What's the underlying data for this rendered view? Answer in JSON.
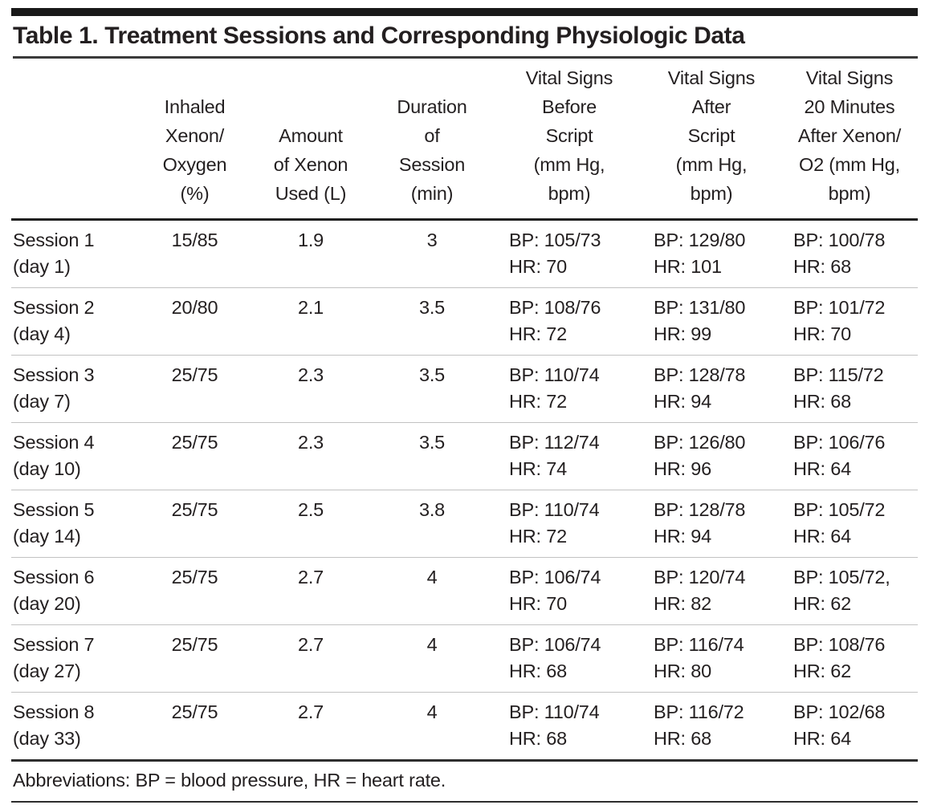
{
  "table": {
    "title": "Table 1. Treatment Sessions and Corresponding Physiologic Data",
    "headers": [
      "",
      "Inhaled\nXenon/\nOxygen\n(%)",
      "Amount\nof Xenon\nUsed (L)",
      "Duration\nof\nSession\n(min)",
      "Vital Signs\nBefore\nScript\n(mm Hg,\nbpm)",
      "Vital Signs\nAfter\nScript\n(mm Hg,\nbpm)",
      "Vital Signs\n20 Minutes\nAfter Xenon/\nO2 (mm Hg,\nbpm)"
    ],
    "rows": [
      {
        "session": "Session 1\n(day 1)",
        "inhaled_pct": "15/85",
        "xenon_l": "1.9",
        "duration_min": "3",
        "vitals_before": "BP: 105/73\nHR: 70",
        "vitals_after": "BP: 129/80\nHR: 101",
        "vitals_after20": "BP: 100/78\nHR: 68"
      },
      {
        "session": "Session 2\n(day 4)",
        "inhaled_pct": "20/80",
        "xenon_l": "2.1",
        "duration_min": "3.5",
        "vitals_before": "BP: 108/76\nHR: 72",
        "vitals_after": "BP: 131/80\nHR: 99",
        "vitals_after20": "BP: 101/72\nHR: 70"
      },
      {
        "session": "Session 3\n(day 7)",
        "inhaled_pct": "25/75",
        "xenon_l": "2.3",
        "duration_min": "3.5",
        "vitals_before": "BP: 110/74\nHR: 72",
        "vitals_after": "BP: 128/78\nHR: 94",
        "vitals_after20": "BP: 115/72\nHR: 68"
      },
      {
        "session": "Session 4\n(day 10)",
        "inhaled_pct": "25/75",
        "xenon_l": "2.3",
        "duration_min": "3.5",
        "vitals_before": "BP: 112/74\nHR: 74",
        "vitals_after": "BP: 126/80\nHR: 96",
        "vitals_after20": "BP: 106/76\nHR: 64"
      },
      {
        "session": "Session 5\n(day 14)",
        "inhaled_pct": "25/75",
        "xenon_l": "2.5",
        "duration_min": "3.8",
        "vitals_before": "BP: 110/74\nHR: 72",
        "vitals_after": "BP: 128/78\nHR: 94",
        "vitals_after20": "BP: 105/72\nHR: 64"
      },
      {
        "session": "Session 6\n(day 20)",
        "inhaled_pct": "25/75",
        "xenon_l": "2.7",
        "duration_min": "4",
        "vitals_before": "BP: 106/74\nHR: 70",
        "vitals_after": "BP: 120/74\nHR: 82",
        "vitals_after20": "BP: 105/72,\nHR: 62"
      },
      {
        "session": "Session 7\n(day 27)",
        "inhaled_pct": "25/75",
        "xenon_l": "2.7",
        "duration_min": "4",
        "vitals_before": "BP: 106/74\nHR: 68",
        "vitals_after": "BP: 116/74\nHR: 80",
        "vitals_after20": "BP: 108/76\nHR: 62"
      },
      {
        "session": "Session 8\n(day 33)",
        "inhaled_pct": "25/75",
        "xenon_l": "2.7",
        "duration_min": "4",
        "vitals_before": "BP: 110/74\nHR: 68",
        "vitals_after": "BP: 116/72\nHR: 68",
        "vitals_after20": "BP: 102/68\nHR: 64"
      }
    ],
    "footnote": "Abbreviations: BP = blood pressure, HR = heart rate.",
    "colors": {
      "text": "#231f20",
      "top_bar": "#191919",
      "rule_dark": "#2d2d2d",
      "rule_light": "#c2c2c2"
    }
  }
}
